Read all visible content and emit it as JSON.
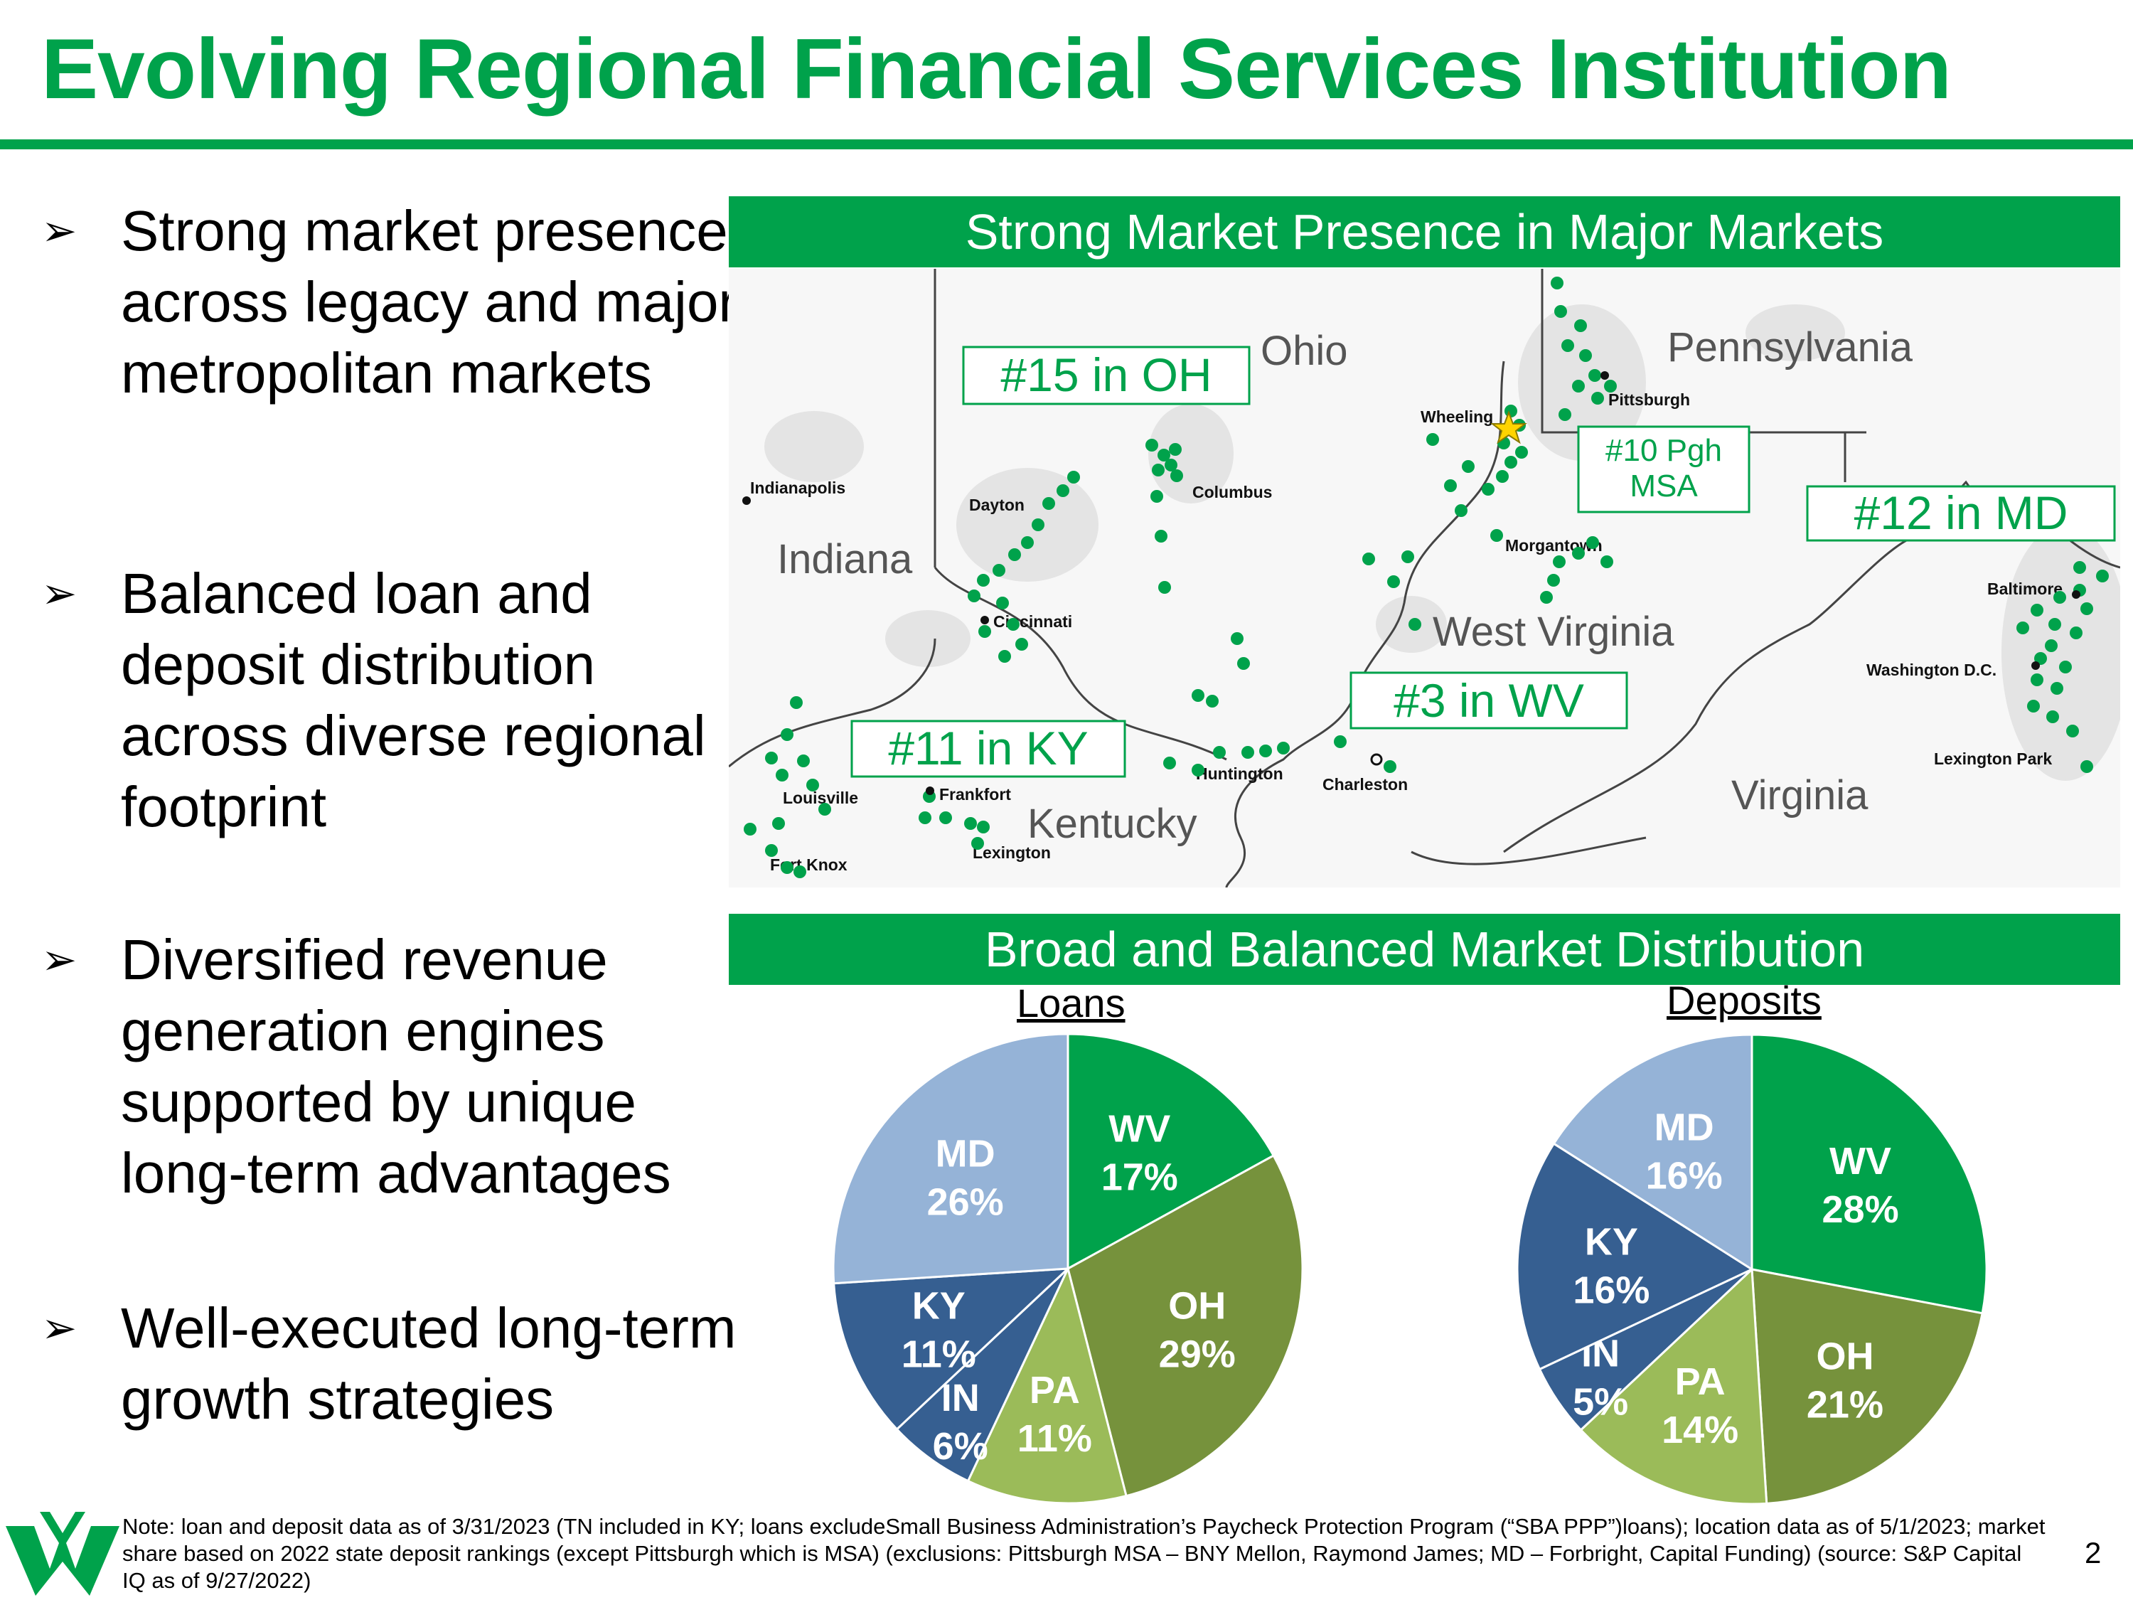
{
  "header": {
    "title": "Evolving Regional Financial Services Institution"
  },
  "bullets": [
    {
      "arrow": "➢",
      "text": "Strong market presence across legacy and major metropolitan markets"
    },
    {
      "arrow": "➢",
      "text": "Balanced loan and deposit distribution across diverse regional footprint"
    },
    {
      "arrow": "➢",
      "text": "Diversified revenue generation engines supported by unique long-term advantages"
    },
    {
      "arrow": "➢",
      "text": "Well-executed long-term growth strategies"
    }
  ],
  "map": {
    "banner": "Strong Market Presence in Major Markets",
    "states": [
      "Ohio",
      "Pennsylvania",
      "Indiana",
      "West Virginia",
      "Kentucky",
      "Virginia"
    ],
    "cities": [
      "Indianapolis",
      "Dayton",
      "Columbus",
      "Wheeling",
      "Pittsburgh",
      "Morgantown",
      "Cincinnati",
      "Baltimore",
      "Washington D.C.",
      "Lexington Park",
      "Charleston",
      "Huntington",
      "Frankfort",
      "Louisville",
      "Fort Knox",
      "Lexington"
    ],
    "rankings": [
      "#15 in OH",
      "#10 Pgh MSA",
      "#12 in MD",
      "#3 in WV",
      "#11 in KY"
    ]
  },
  "distribution": {
    "banner": "Broad and Balanced Market Distribution"
  },
  "chart_data": [
    {
      "type": "pie",
      "title": "Loans",
      "categories": [
        "WV",
        "OH",
        "PA",
        "IN",
        "KY",
        "MD"
      ],
      "values": [
        17,
        29,
        11,
        6,
        11,
        26
      ],
      "labels": [
        "17%",
        "29%",
        "11%",
        "6%",
        "11%",
        "26%"
      ],
      "colors": [
        "#00A24B",
        "#76923C",
        "#9BBB59",
        "#365F91",
        "#365F91",
        "#95B3D7"
      ]
    },
    {
      "type": "pie",
      "title": "Deposits",
      "categories": [
        "WV",
        "OH",
        "PA",
        "IN",
        "KY",
        "MD"
      ],
      "values": [
        28,
        21,
        14,
        5,
        16,
        16
      ],
      "labels": [
        "28%",
        "21%",
        "14%",
        "5%",
        "16%",
        "16%"
      ],
      "colors": [
        "#00A24B",
        "#76923C",
        "#9BBB59",
        "#365F91",
        "#365F91",
        "#95B3D7"
      ]
    }
  ],
  "footer": {
    "note": "Note: loan and deposit data as of 3/31/2023 (TN included in KY; loans excludeSmall Business Administration’s Paycheck Protection Program (“SBA PPP”)loans); location data as of 5/1/2023; market share based on 2022 state deposit rankings (except Pittsburgh which is MSA) (exclusions: Pittsburgh MSA – BNY Mellon, Raymond James; MD – Forbright, Capital Funding) (source: S&P Capital IQ as of 9/27/2022)",
    "page_number": "2"
  },
  "colors": {
    "brand_green": "#00A24B",
    "olive": "#76923C",
    "light_green": "#9BBB59",
    "navy": "#365F91",
    "light_blue": "#95B3D7"
  },
  "icons": {
    "logo": "wesbanco-w-logo",
    "hq_star": "star-icon"
  }
}
